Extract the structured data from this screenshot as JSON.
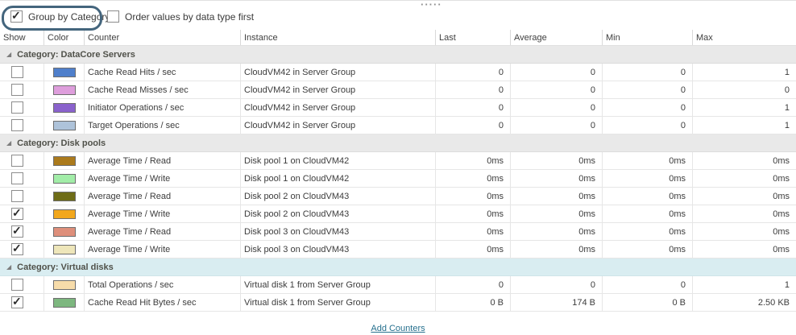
{
  "toolbar": {
    "group_by_category": {
      "label": "Group by Category",
      "checked": true
    },
    "order_values": {
      "label": "Order values by data type first",
      "checked": false
    },
    "drag_handle_dots": "·····"
  },
  "annotation": {
    "highlight_color": "#44657d"
  },
  "table": {
    "columns": {
      "show": "Show",
      "color": "Color",
      "counter": "Counter",
      "instance": "Instance",
      "last": "Last",
      "average": "Average",
      "min": "Min",
      "max": "Max"
    },
    "groups": [
      {
        "label": "Category: DataCore Servers",
        "highlighted": false,
        "rows": [
          {
            "show": false,
            "color": "#4f7fcb",
            "counter": "Cache Read Hits / sec",
            "instance": "CloudVM42 in Server Group",
            "last": "0",
            "average": "0",
            "min": "0",
            "max": "1"
          },
          {
            "show": false,
            "color": "#de9edc",
            "counter": "Cache Read Misses / sec",
            "instance": "CloudVM42 in Server Group",
            "last": "0",
            "average": "0",
            "min": "0",
            "max": "0"
          },
          {
            "show": false,
            "color": "#8a62cc",
            "counter": "Initiator Operations / sec",
            "instance": "CloudVM42 in Server Group",
            "last": "0",
            "average": "0",
            "min": "0",
            "max": "1"
          },
          {
            "show": false,
            "color": "#aec3da",
            "counter": "Target Operations / sec",
            "instance": "CloudVM42 in Server Group",
            "last": "0",
            "average": "0",
            "min": "0",
            "max": "1"
          }
        ]
      },
      {
        "label": "Category: Disk pools",
        "highlighted": false,
        "rows": [
          {
            "show": false,
            "color": "#ab7a1c",
            "counter": "Average Time / Read",
            "instance": "Disk pool 1 on CloudVM42",
            "last": "0ms",
            "average": "0ms",
            "min": "0ms",
            "max": "0ms"
          },
          {
            "show": false,
            "color": "#a2eda8",
            "counter": "Average Time / Write",
            "instance": "Disk pool 1 on CloudVM42",
            "last": "0ms",
            "average": "0ms",
            "min": "0ms",
            "max": "0ms"
          },
          {
            "show": false,
            "color": "#6e6c17",
            "counter": "Average Time / Read",
            "instance": "Disk pool 2 on CloudVM43",
            "last": "0ms",
            "average": "0ms",
            "min": "0ms",
            "max": "0ms"
          },
          {
            "show": true,
            "color": "#f2a71c",
            "counter": "Average Time / Write",
            "instance": "Disk pool 2 on CloudVM43",
            "last": "0ms",
            "average": "0ms",
            "min": "0ms",
            "max": "0ms"
          },
          {
            "show": true,
            "color": "#de8f7b",
            "counter": "Average Time / Read",
            "instance": "Disk pool 3 on CloudVM43",
            "last": "0ms",
            "average": "0ms",
            "min": "0ms",
            "max": "0ms"
          },
          {
            "show": true,
            "color": "#eee6ba",
            "counter": "Average Time / Write",
            "instance": "Disk pool 3 on CloudVM43",
            "last": "0ms",
            "average": "0ms",
            "min": "0ms",
            "max": "0ms"
          }
        ]
      },
      {
        "label": "Category: Virtual disks",
        "highlighted": true,
        "rows": [
          {
            "show": false,
            "color": "#f7dcaa",
            "counter": "Total Operations / sec",
            "instance": "Virtual disk 1 from Server Group",
            "last": "0",
            "average": "0",
            "min": "0",
            "max": "1"
          },
          {
            "show": true,
            "color": "#7db77f",
            "counter": "Cache Read Hit Bytes / sec",
            "instance": "Virtual disk 1 from Server Group",
            "last": "0 B",
            "average": "174 B",
            "min": "0 B",
            "max": "2.50 KB"
          }
        ]
      }
    ]
  },
  "footer": {
    "add_counters_label": "Add Counters"
  }
}
